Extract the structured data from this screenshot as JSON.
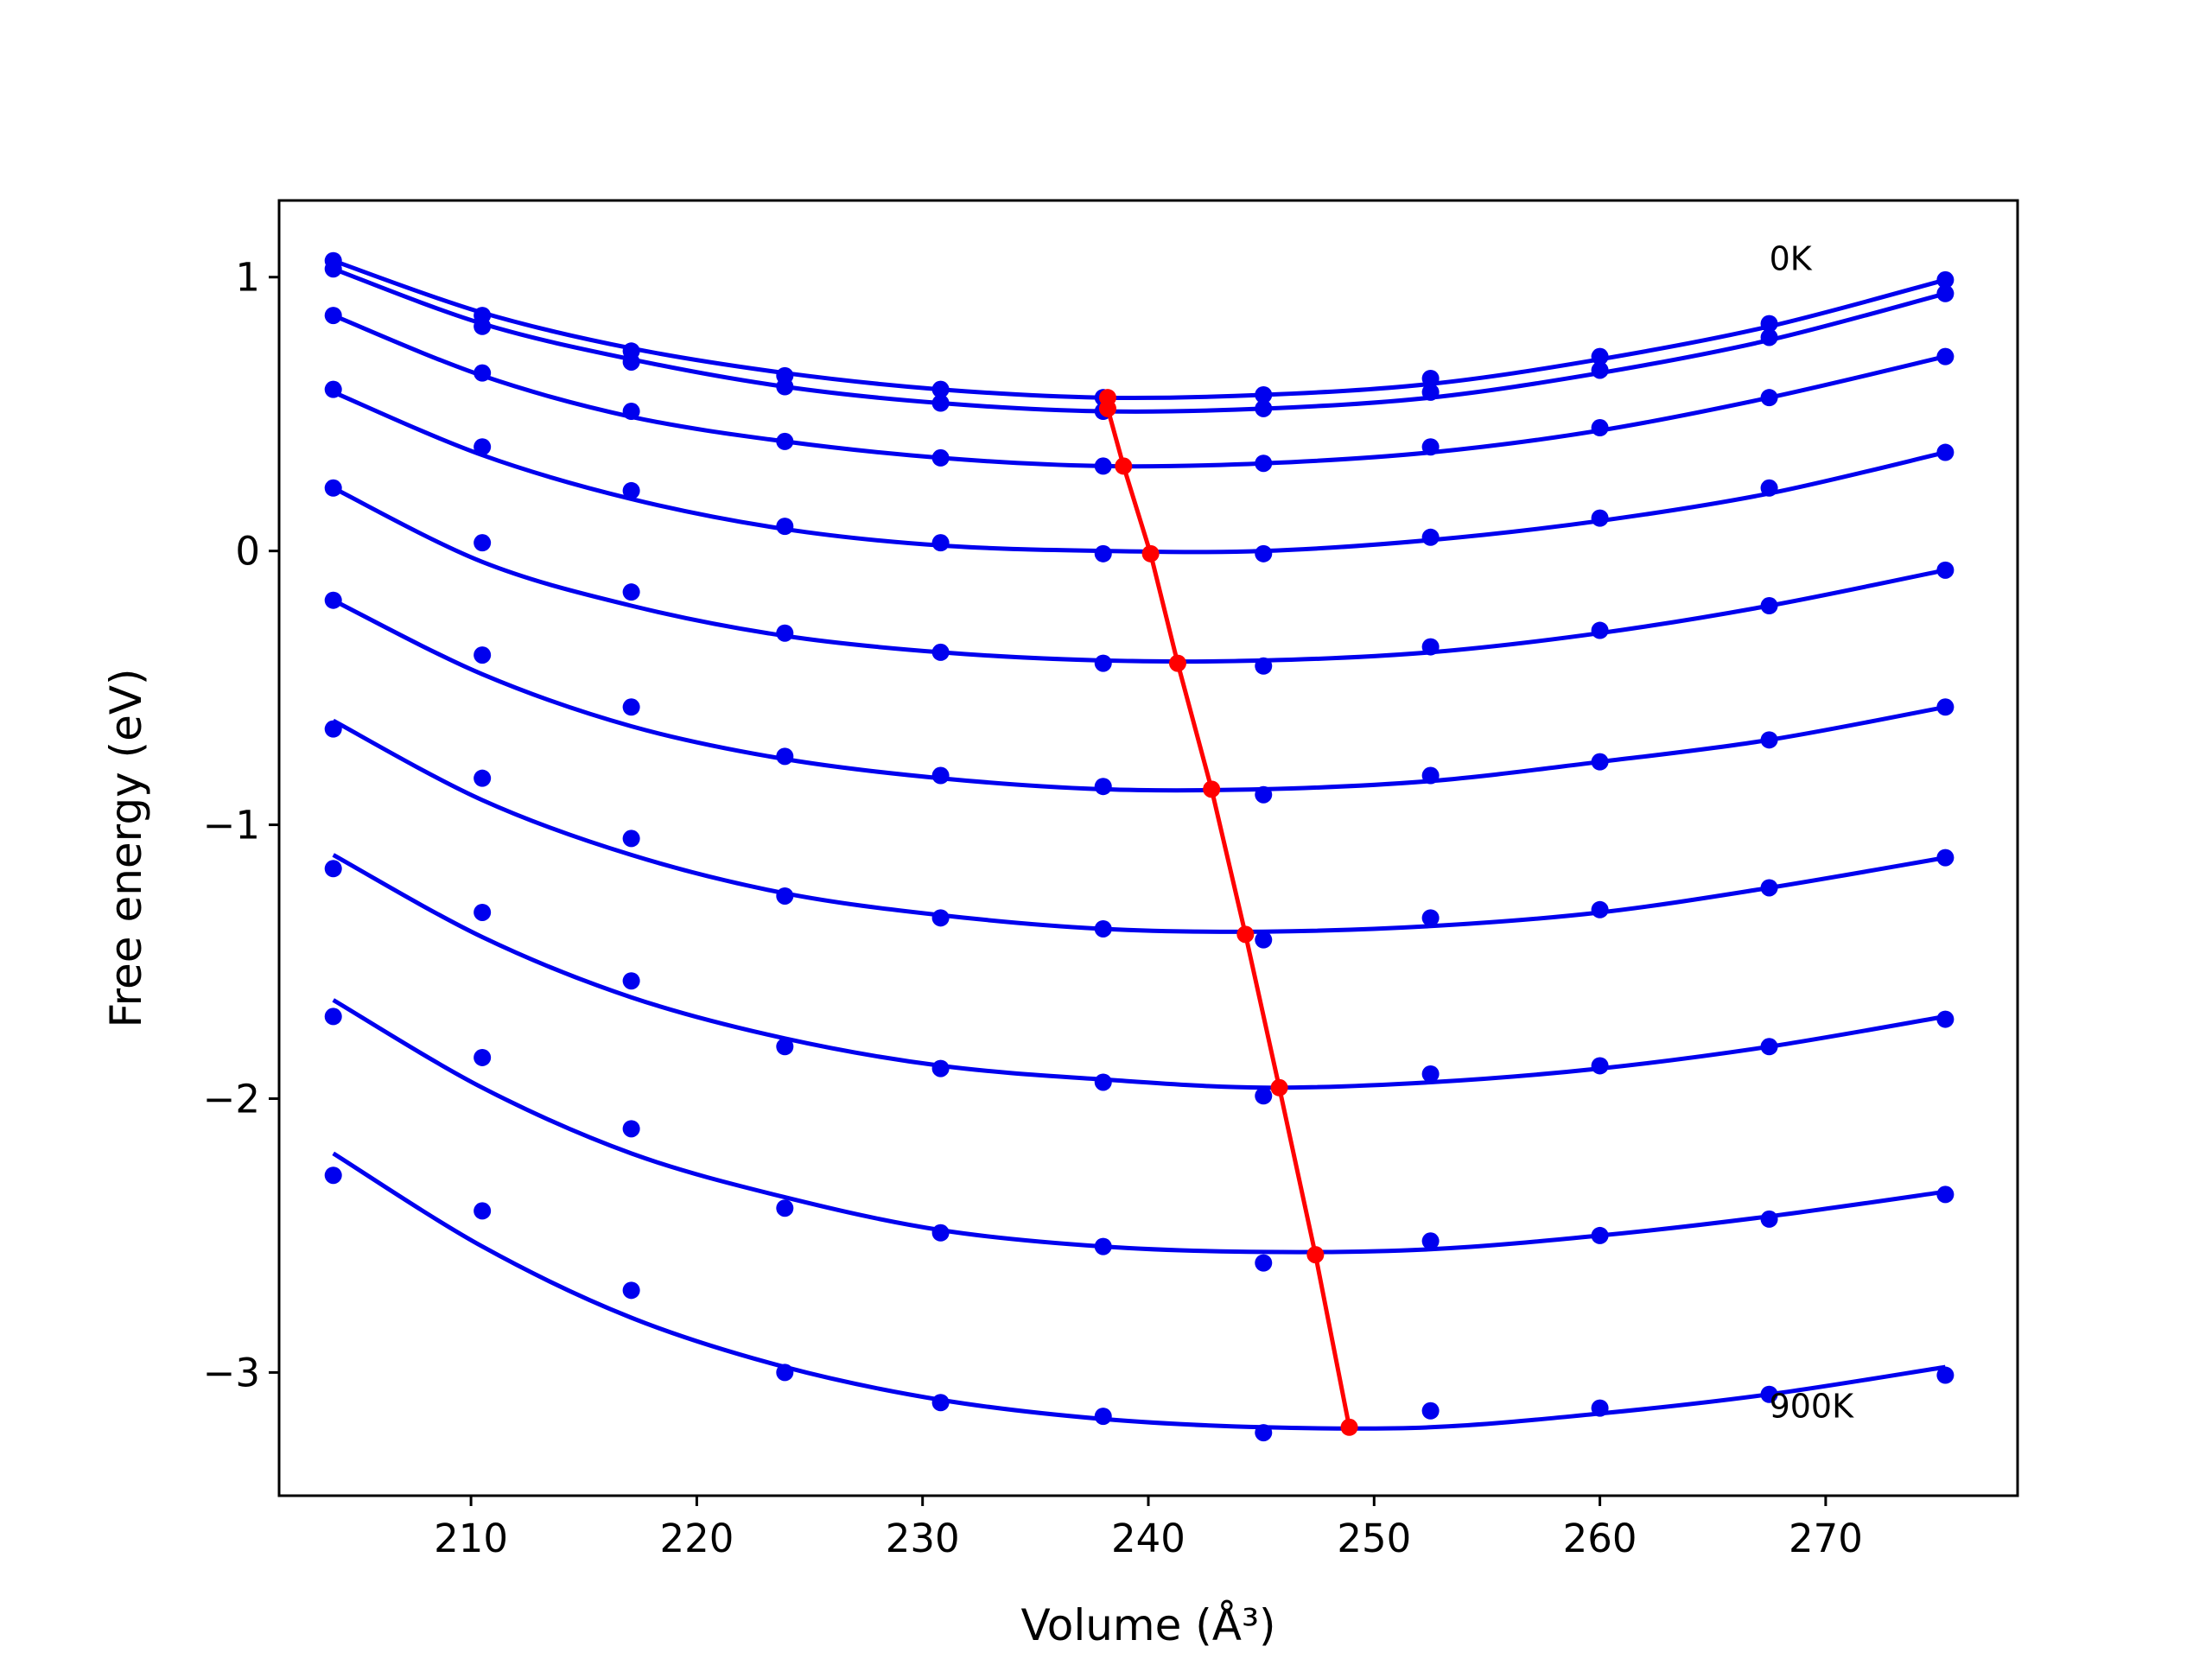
{
  "chart_data": {
    "type": "line",
    "title": "",
    "xlabel": "Volume (Å³)",
    "ylabel": "Free energy (eV)",
    "xlim": [
      201.5,
      278.5
    ],
    "ylim": [
      -3.45,
      1.28
    ],
    "grid": false,
    "legend": "none",
    "xticks": [
      210,
      220,
      230,
      240,
      250,
      260,
      270
    ],
    "yticks": [
      -3,
      -2,
      -1,
      0,
      1
    ],
    "ytick_labels": [
      "−3",
      "−2",
      "−1",
      "0",
      "1"
    ],
    "colors": {
      "curves": "#0000ee",
      "minimum_path": "#ff0000"
    },
    "annotations": [
      {
        "text": "0K",
        "x": 267.5,
        "y": 1.07
      },
      {
        "text": "900K",
        "x": 267.5,
        "y": -3.12
      }
    ],
    "x": [
      203.9,
      210.5,
      217.1,
      223.9,
      230.8,
      238.0,
      245.1,
      252.5,
      260.0,
      267.5,
      275.3
    ],
    "series": [
      {
        "points_y": [
          1.06,
          0.86,
          0.73,
          0.64,
          0.59,
          0.56,
          0.57,
          0.63,
          0.71,
          0.83,
          0.99
        ],
        "curve_y": [
          1.06,
          0.87,
          0.74,
          0.65,
          0.59,
          0.56,
          0.57,
          0.61,
          0.7,
          0.82,
          0.99
        ]
      },
      {
        "points_y": [
          1.03,
          0.82,
          0.69,
          0.6,
          0.54,
          0.51,
          0.52,
          0.58,
          0.66,
          0.78,
          0.94
        ],
        "curve_y": [
          1.03,
          0.83,
          0.7,
          0.6,
          0.54,
          0.51,
          0.52,
          0.56,
          0.65,
          0.77,
          0.94
        ]
      },
      {
        "points_y": [
          0.86,
          0.65,
          0.51,
          0.4,
          0.34,
          0.31,
          0.32,
          0.38,
          0.45,
          0.56,
          0.71
        ],
        "curve_y": [
          0.86,
          0.64,
          0.49,
          0.4,
          0.34,
          0.31,
          0.32,
          0.36,
          0.44,
          0.56,
          0.71
        ]
      },
      {
        "points_y": [
          0.59,
          0.38,
          0.22,
          0.09,
          0.03,
          -0.01,
          -0.01,
          0.05,
          0.12,
          0.23,
          0.36
        ],
        "curve_y": [
          0.58,
          0.35,
          0.19,
          0.08,
          0.02,
          0.0,
          0.0,
          0.04,
          0.11,
          0.21,
          0.36
        ]
      },
      {
        "points_y": [
          0.23,
          0.03,
          -0.15,
          -0.3,
          -0.37,
          -0.41,
          -0.42,
          -0.35,
          -0.29,
          -0.2,
          -0.07
        ],
        "curve_y": [
          0.23,
          -0.04,
          -0.2,
          -0.31,
          -0.37,
          -0.4,
          -0.4,
          -0.37,
          -0.3,
          -0.2,
          -0.07
        ]
      },
      {
        "points_y": [
          -0.18,
          -0.38,
          -0.57,
          -0.75,
          -0.82,
          -0.86,
          -0.89,
          -0.82,
          -0.77,
          -0.69,
          -0.57
        ],
        "curve_y": [
          -0.18,
          -0.45,
          -0.64,
          -0.76,
          -0.83,
          -0.87,
          -0.87,
          -0.84,
          -0.77,
          -0.69,
          -0.57
        ]
      },
      {
        "points_y": [
          -0.65,
          -0.83,
          -1.05,
          -1.26,
          -1.34,
          -1.38,
          -1.42,
          -1.34,
          -1.31,
          -1.23,
          -1.12
        ],
        "curve_y": [
          -0.62,
          -0.91,
          -1.11,
          -1.25,
          -1.33,
          -1.38,
          -1.39,
          -1.37,
          -1.32,
          -1.23,
          -1.12
        ]
      },
      {
        "points_y": [
          -1.16,
          -1.32,
          -1.57,
          -1.81,
          -1.89,
          -1.94,
          -1.99,
          -1.91,
          -1.88,
          -1.81,
          -1.71
        ],
        "curve_y": [
          -1.11,
          -1.41,
          -1.63,
          -1.78,
          -1.88,
          -1.93,
          -1.96,
          -1.94,
          -1.89,
          -1.81,
          -1.7
        ]
      },
      {
        "points_y": [
          -1.7,
          -1.85,
          -2.11,
          -2.4,
          -2.49,
          -2.54,
          -2.6,
          -2.52,
          -2.5,
          -2.44,
          -2.35
        ],
        "curve_y": [
          -1.64,
          -1.96,
          -2.2,
          -2.36,
          -2.48,
          -2.54,
          -2.56,
          -2.55,
          -2.5,
          -2.43,
          -2.34
        ]
      },
      {
        "points_y": [
          -2.28,
          -2.41,
          -2.7,
          -3.0,
          -3.11,
          -3.16,
          -3.22,
          -3.14,
          -3.13,
          -3.08,
          -3.01
        ],
        "curve_y": [
          -2.2,
          -2.54,
          -2.8,
          -2.98,
          -3.1,
          -3.17,
          -3.2,
          -3.2,
          -3.15,
          -3.08,
          -2.98
        ]
      }
    ],
    "minimum_path": {
      "x": [
        238.2,
        238.2,
        238.9,
        240.1,
        241.3,
        242.8,
        244.3,
        245.8,
        247.4,
        248.9
      ],
      "y": [
        0.56,
        0.52,
        0.31,
        -0.01,
        -0.41,
        -0.87,
        -1.4,
        -1.96,
        -2.57,
        -3.2
      ]
    }
  }
}
